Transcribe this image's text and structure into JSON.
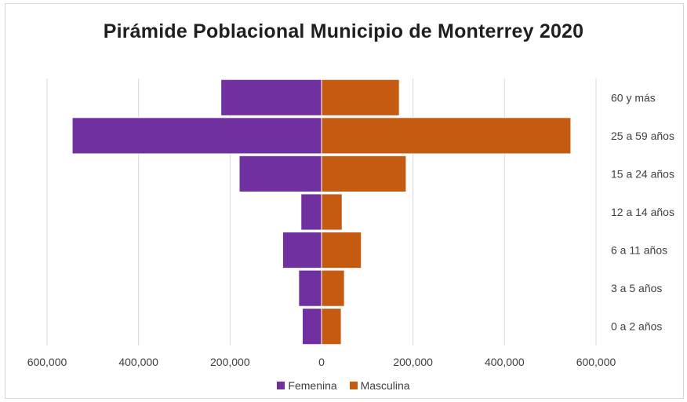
{
  "chart_data": {
    "type": "bar",
    "orientation": "horizontal",
    "title": "Pirámide Poblacional Municipio de Monterrey 2020",
    "categories": [
      "60 y más",
      "25 a 59 años",
      "15 a 24 años",
      "12 a 14 años",
      "6 a 11 años",
      "3 a 5 años",
      "0 a 2 años"
    ],
    "series": [
      {
        "name": "Femenina",
        "values": [
          -220000,
          -545000,
          -180000,
          -45000,
          -85000,
          -50000,
          -42000
        ],
        "color": "#7030A0"
      },
      {
        "name": "Masculina",
        "values": [
          170000,
          545000,
          185000,
          45000,
          87000,
          50000,
          43000
        ],
        "color": "#C55A11"
      }
    ],
    "xlim": [
      -600000,
      600000
    ],
    "xticks": [
      -600000,
      -400000,
      -200000,
      0,
      200000,
      400000,
      600000
    ],
    "xtick_labels": [
      "600,000",
      "400,000",
      "200,000",
      "0",
      "200,000",
      "400,000",
      "600,000"
    ],
    "grid": "vertical",
    "legend": "bottom"
  }
}
